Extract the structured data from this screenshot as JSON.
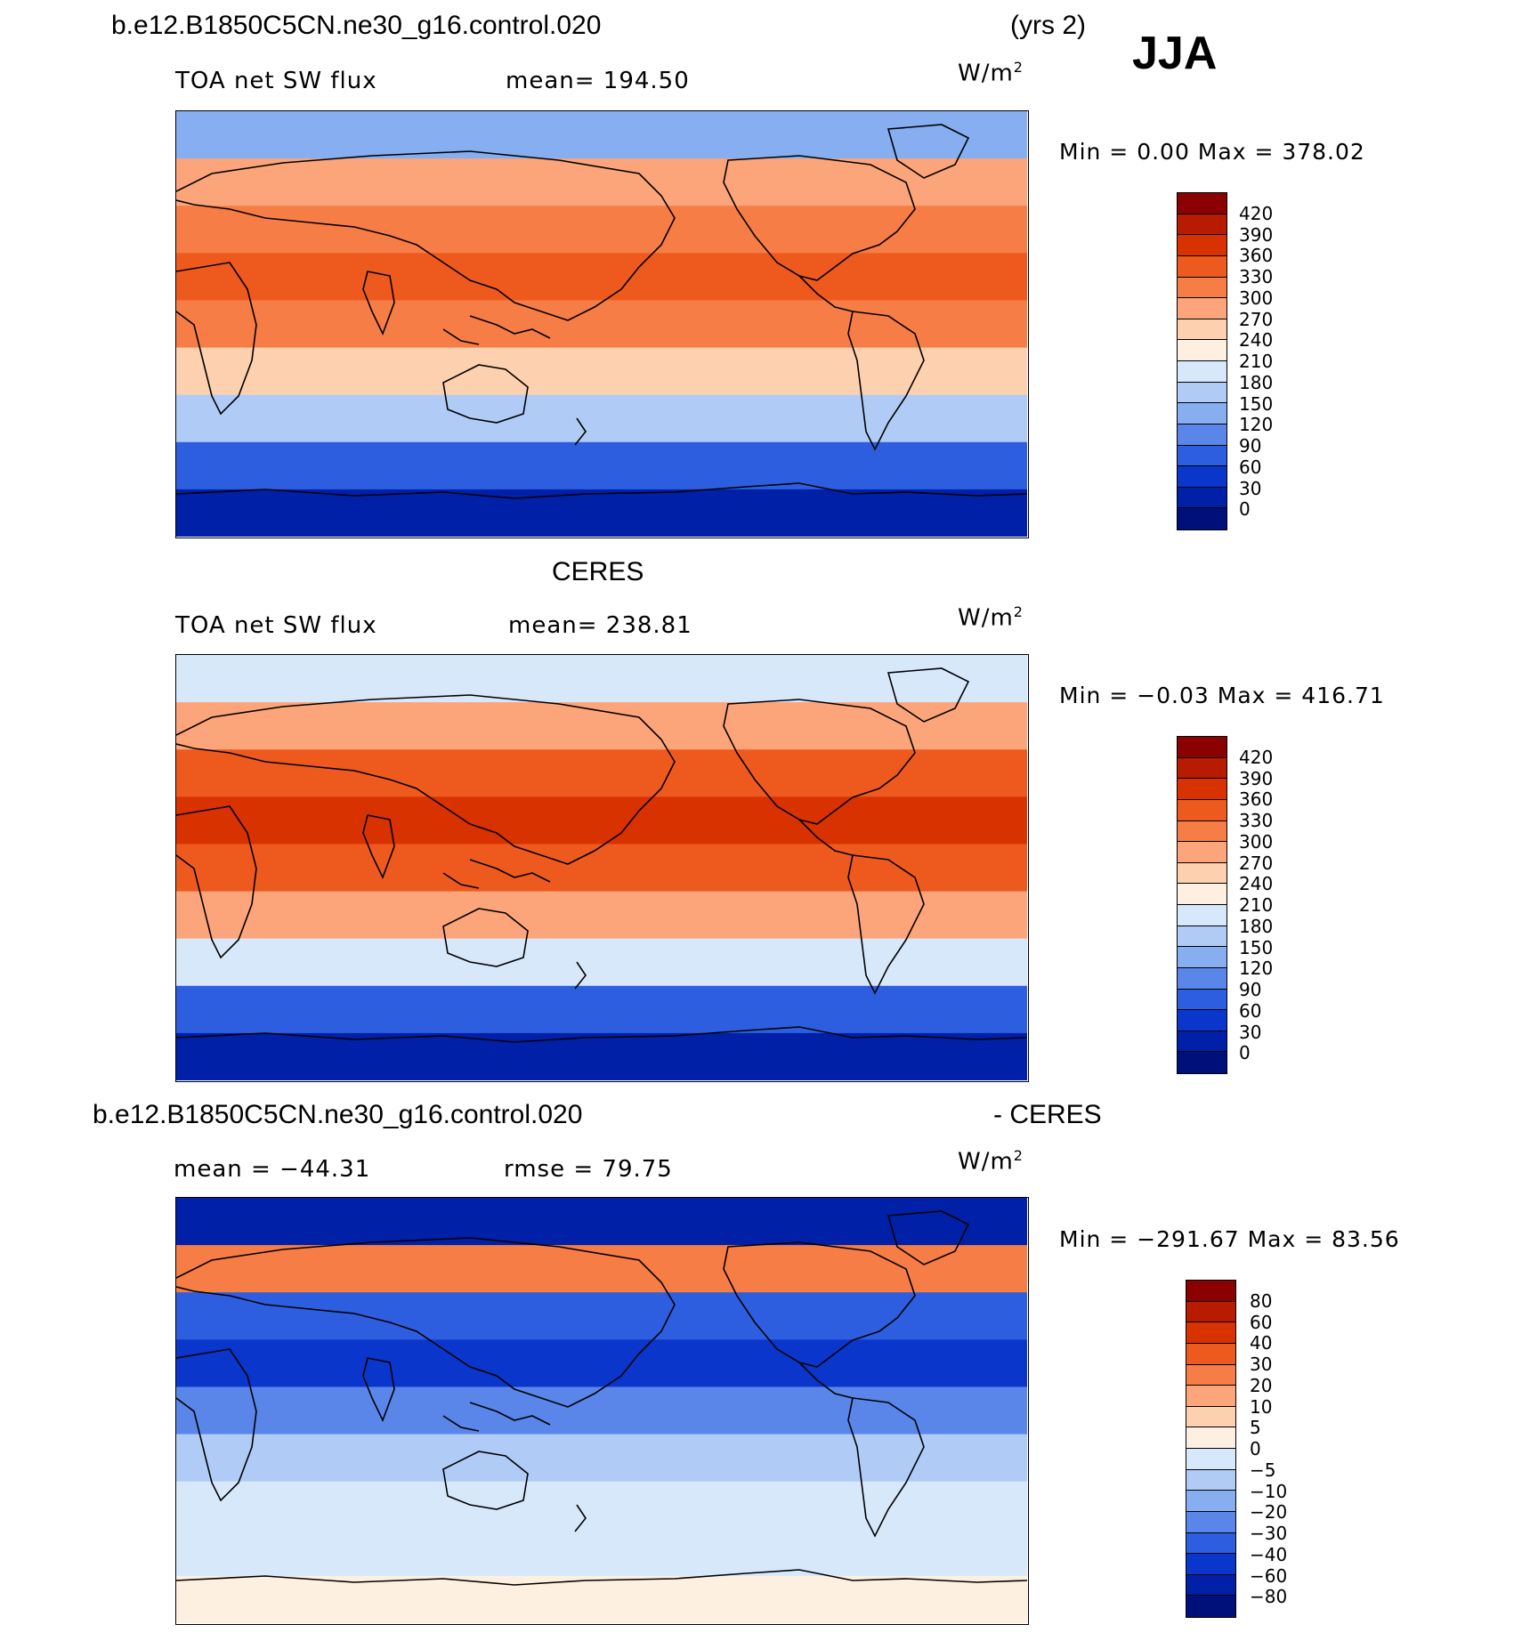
{
  "case_name": "b.e12.B1850C5CN.ne30_g16.control.020",
  "years": "(yrs 2)",
  "season": "JJA",
  "panels": [
    {
      "variable": "TOA net SW flux",
      "mean_label": "mean= 194.50",
      "units": "W/m",
      "units_exp": "2",
      "minmax": "Min =    0.00 Max = 378.02",
      "region_levels": {
        "polar_north": 130,
        "high_north": 270,
        "mid_north": 300,
        "subtropic_north": 330,
        "equator": 300,
        "subtropic_south": 240,
        "mid_south": 150,
        "high_south": 60,
        "polar_south": 10
      }
    },
    {
      "title": "CERES",
      "variable": "TOA net SW flux",
      "mean_label": "mean= 238.81",
      "units": "W/m",
      "units_exp": "2",
      "minmax": "Min =   −0.03 Max = 416.71",
      "region_levels": {
        "polar_north": 200,
        "high_north": 270,
        "mid_north": 330,
        "subtropic_north": 360,
        "equator": 330,
        "subtropic_south": 270,
        "mid_south": 180,
        "high_south": 60,
        "polar_south": 10
      }
    },
    {
      "title_left": "b.e12.B1850C5CN.ne30_g16.control.020",
      "title_right": "- CERES",
      "mean_label": "mean = −44.31",
      "rmse_label": "rmse =   79.75",
      "units": "W/m",
      "units_exp": "2",
      "minmax": "Min = −291.67 Max =  83.56",
      "region_levels": {
        "polar_north": -80,
        "high_north": 20,
        "mid_north": -40,
        "subtropic_north": -60,
        "equator": -30,
        "subtropic_south": -10,
        "mid_south": -5,
        "high_south": -5,
        "polar_south": 2
      }
    }
  ],
  "colorbars": [
    {
      "labels": [
        "420",
        "390",
        "360",
        "330",
        "300",
        "270",
        "240",
        "210",
        "180",
        "150",
        "120",
        "90",
        "60",
        "30",
        "0"
      ],
      "colors": [
        "#8b0000",
        "#b81c00",
        "#d83200",
        "#ee5a1e",
        "#f77d46",
        "#fca57a",
        "#fdd0b0",
        "#fdf0e0",
        "#d8e8fb",
        "#b0ccf6",
        "#86aef0",
        "#5a86ea",
        "#2e5ee0",
        "#0a36cc",
        "#0020a8",
        "#00107a"
      ],
      "levels": [
        420,
        390,
        360,
        330,
        300,
        270,
        240,
        210,
        180,
        150,
        120,
        90,
        60,
        30,
        0
      ]
    },
    {
      "labels": [
        "420",
        "390",
        "360",
        "330",
        "300",
        "270",
        "240",
        "210",
        "180",
        "150",
        "120",
        "90",
        "60",
        "30",
        "0"
      ],
      "colors": [
        "#8b0000",
        "#b81c00",
        "#d83200",
        "#ee5a1e",
        "#f77d46",
        "#fca57a",
        "#fdd0b0",
        "#fdf0e0",
        "#d8e8fb",
        "#b0ccf6",
        "#86aef0",
        "#5a86ea",
        "#2e5ee0",
        "#0a36cc",
        "#0020a8",
        "#00107a"
      ],
      "levels": [
        420,
        390,
        360,
        330,
        300,
        270,
        240,
        210,
        180,
        150,
        120,
        90,
        60,
        30,
        0
      ]
    },
    {
      "labels": [
        "80",
        "60",
        "40",
        "30",
        "20",
        "10",
        "5",
        "0",
        "−5",
        "−10",
        "−20",
        "−30",
        "−40",
        "−60",
        "−80"
      ],
      "colors": [
        "#8b0000",
        "#b81c00",
        "#d83200",
        "#ee5a1e",
        "#f77d46",
        "#fca57a",
        "#fdd0b0",
        "#fdf0e0",
        "#d8e8fb",
        "#b0ccf6",
        "#86aef0",
        "#5a86ea",
        "#2e5ee0",
        "#0a36cc",
        "#0020a8",
        "#00107a"
      ],
      "levels": [
        80,
        60,
        40,
        30,
        20,
        10,
        5,
        0,
        -5,
        -10,
        -20,
        -30,
        -40,
        -60,
        -80
      ]
    }
  ]
}
